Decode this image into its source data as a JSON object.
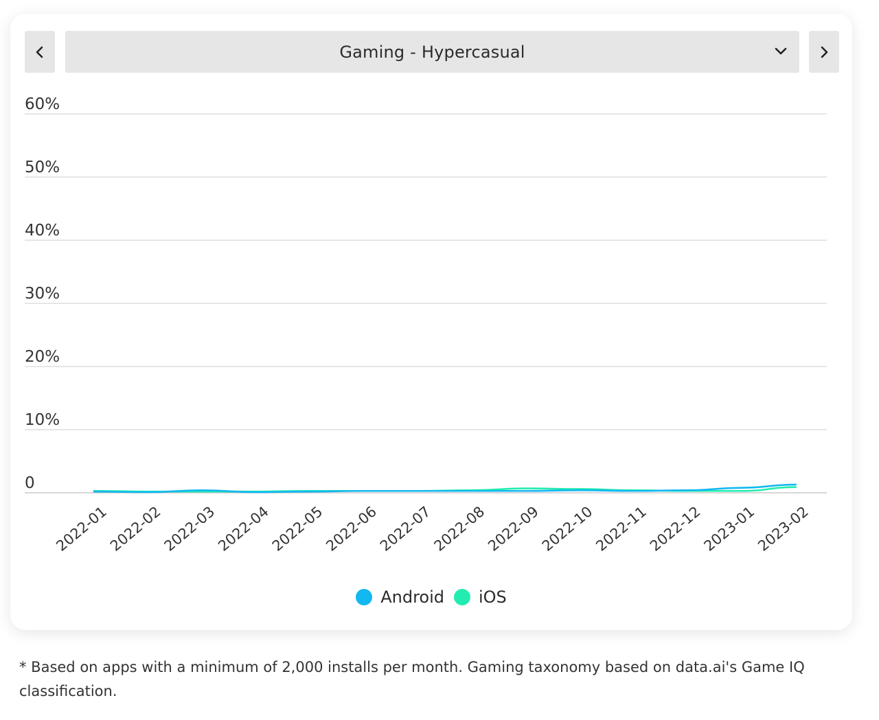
{
  "selector": {
    "label": "Gaming - Hypercasual",
    "prev_icon": "chevron-left-icon",
    "next_icon": "chevron-right-icon",
    "dropdown_icon": "chevron-down-icon"
  },
  "colors": {
    "android": "#12b8f0",
    "ios": "#23ecb0",
    "grid": "#d6d6d6",
    "axis": "#bfbfbf"
  },
  "chart_data": {
    "type": "line",
    "title": "",
    "xlabel": "",
    "ylabel": "",
    "y_ticks": [
      "0",
      "10%",
      "20%",
      "30%",
      "40%",
      "50%",
      "60%"
    ],
    "ylim": [
      0,
      60
    ],
    "grid": true,
    "legend_position": "bottom-center",
    "x": [
      "2022-01",
      "2022-02",
      "2022-03",
      "2022-04",
      "2022-05",
      "2022-06",
      "2022-07",
      "2022-08",
      "2022-09",
      "2022-10",
      "2022-11",
      "2022-12",
      "2023-01",
      "2023-02"
    ],
    "series": [
      {
        "name": "Android",
        "values": [
          0.2,
          0.1,
          0.4,
          0.1,
          0.2,
          0.3,
          0.3,
          0.3,
          0.3,
          0.4,
          0.3,
          0.4,
          0.8,
          1.3
        ]
      },
      {
        "name": "iOS",
        "values": [
          0.3,
          0.2,
          0.2,
          0.2,
          0.3,
          0.3,
          0.3,
          0.4,
          0.7,
          0.6,
          0.4,
          0.3,
          0.3,
          0.9
        ]
      }
    ]
  },
  "footnote": "* Based on apps with a minimum of 2,000 installs per month. Gaming taxonomy based on data.ai's Game IQ classification."
}
